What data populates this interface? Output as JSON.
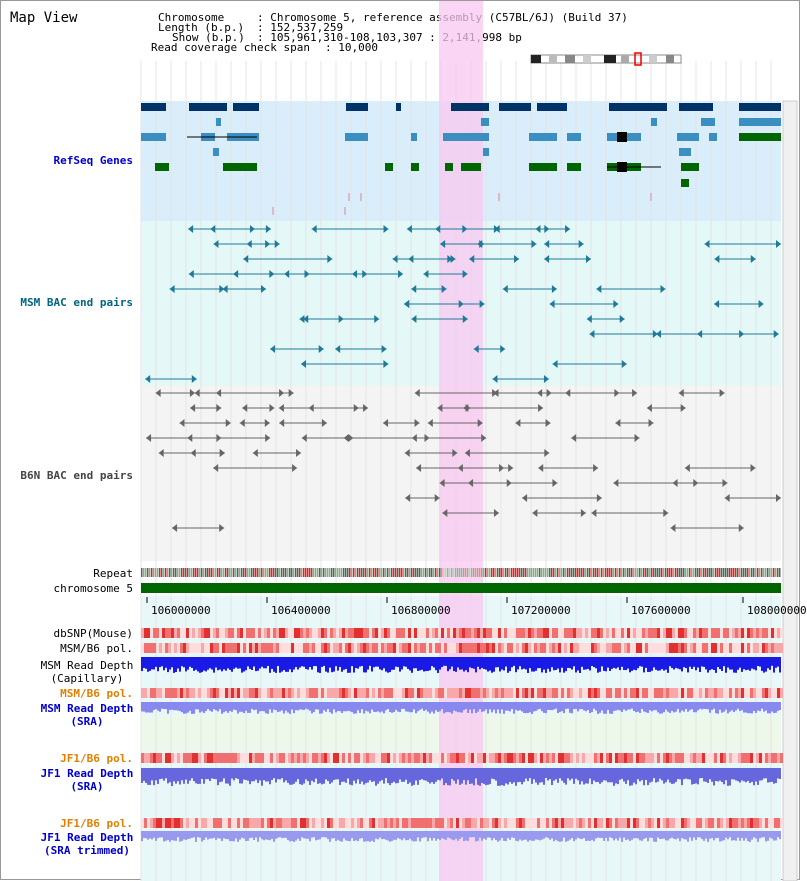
{
  "title": "Map View",
  "header": {
    "chromosome_key": "Chromosome",
    "chromosome_val": ": Chromosome 5, reference assembly (C57BL/6J) (Build 37)",
    "length_key": "Length (b.p.)",
    "length_val": ": 152,537,259",
    "show_key": "Show (b.p.)",
    "show_val": ": 105,961,310-108,103,307 : 2,141,998 bp",
    "coverage_key": "Read coverage check span",
    "coverage_val": ": 10,000"
  },
  "tracks": {
    "refseq": "RefSeq Genes",
    "msm_bac": "MSM BAC end pairs",
    "b6n_bac": "B6N BAC end pairs",
    "repeat": "Repeat",
    "chromosome": "chromosome 5",
    "dbsnp": "dbSNP(Mouse)",
    "msm_b6_pol_1": "MSM/B6 pol.",
    "msm_read_depth_cap_1": "MSM Read Depth",
    "msm_read_depth_cap_2": "(Capillary)",
    "msm_b6_pol_2": "MSM/B6 pol.",
    "msm_read_depth_sra_1": "MSM Read Depth",
    "msm_read_depth_sra_2": "(SRA)",
    "jf1_b6_pol_1": "JF1/B6 pol.",
    "jf1_read_depth_sra_1": "JF1 Read Depth",
    "jf1_read_depth_sra_2": "(SRA)",
    "jf1_b6_pol_2": "JF1/B6 pol.",
    "jf1_read_depth_trim_1": "JF1 Read Depth",
    "jf1_read_depth_trim_2": "(SRA trimmed)"
  },
  "axis": {
    "ticks": [
      "106000000",
      "106400000",
      "106800000",
      "107200000",
      "107600000",
      "108000000"
    ]
  },
  "colors": {
    "refseq_label": "#0000cc",
    "msm_label": "#006680",
    "b6n_label": "#444444",
    "pol_label_msm": "#e08000",
    "depth_label": "#0000cc",
    "highlight": "#f8c8f0",
    "dark_gene": "#003366",
    "mid_gene": "#3a8fc0",
    "green_gene": "#006600"
  }
}
